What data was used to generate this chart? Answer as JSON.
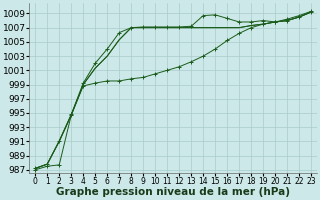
{
  "bg_color": "#cce8e8",
  "grid_color": "#aacccc",
  "line_color": "#1a5c1a",
  "marker_color": "#1a5c1a",
  "xlabel": "Graphe pression niveau de la mer (hPa)",
  "xlabel_fontsize": 7.5,
  "xtick_fontsize": 5.5,
  "ytick_fontsize": 6.5,
  "xlim": [
    -0.5,
    23.5
  ],
  "ylim": [
    986.5,
    1010.5
  ],
  "yticks": [
    987,
    989,
    991,
    993,
    995,
    997,
    999,
    1001,
    1003,
    1005,
    1007,
    1009
  ],
  "xticks": [
    0,
    1,
    2,
    3,
    4,
    5,
    6,
    7,
    8,
    9,
    10,
    11,
    12,
    13,
    14,
    15,
    16,
    17,
    18,
    19,
    20,
    21,
    22,
    23
  ],
  "series": [
    [
      987.2,
      987.8,
      991.0,
      994.7,
      999.0,
      1001.3,
      1003.0,
      1005.3,
      1007.0,
      1007.0,
      1007.0,
      1007.0,
      1007.0,
      1007.0,
      1007.0,
      1007.0,
      1007.0,
      1007.0,
      1007.3,
      1007.5,
      1007.8,
      1008.0,
      1008.5,
      1009.2
    ],
    [
      987.2,
      987.8,
      991.0,
      994.7,
      999.0,
      1001.3,
      1003.0,
      1005.3,
      1007.0,
      1007.0,
      1007.0,
      1007.0,
      1007.0,
      1007.0,
      1007.0,
      1007.0,
      1007.0,
      1007.0,
      1007.3,
      1007.5,
      1007.8,
      1008.0,
      1008.5,
      1009.2
    ],
    [
      987.2,
      987.8,
      991.1,
      994.8,
      999.2,
      1002.0,
      1004.0,
      1006.3,
      1007.0,
      1007.1,
      1007.1,
      1007.1,
      1007.1,
      1007.2,
      1008.7,
      1008.8,
      1008.3,
      1007.8,
      1007.8,
      1008.0,
      1007.8,
      1008.2,
      1008.7,
      1009.3
    ],
    [
      987.0,
      987.5,
      987.7,
      994.7,
      998.8,
      999.2,
      999.5,
      999.5,
      999.8,
      1000.0,
      1000.5,
      1001.0,
      1001.5,
      1002.2,
      1003.0,
      1004.0,
      1005.2,
      1006.2,
      1007.0,
      1007.5,
      1007.8,
      1008.0,
      1008.5,
      1009.2
    ]
  ]
}
